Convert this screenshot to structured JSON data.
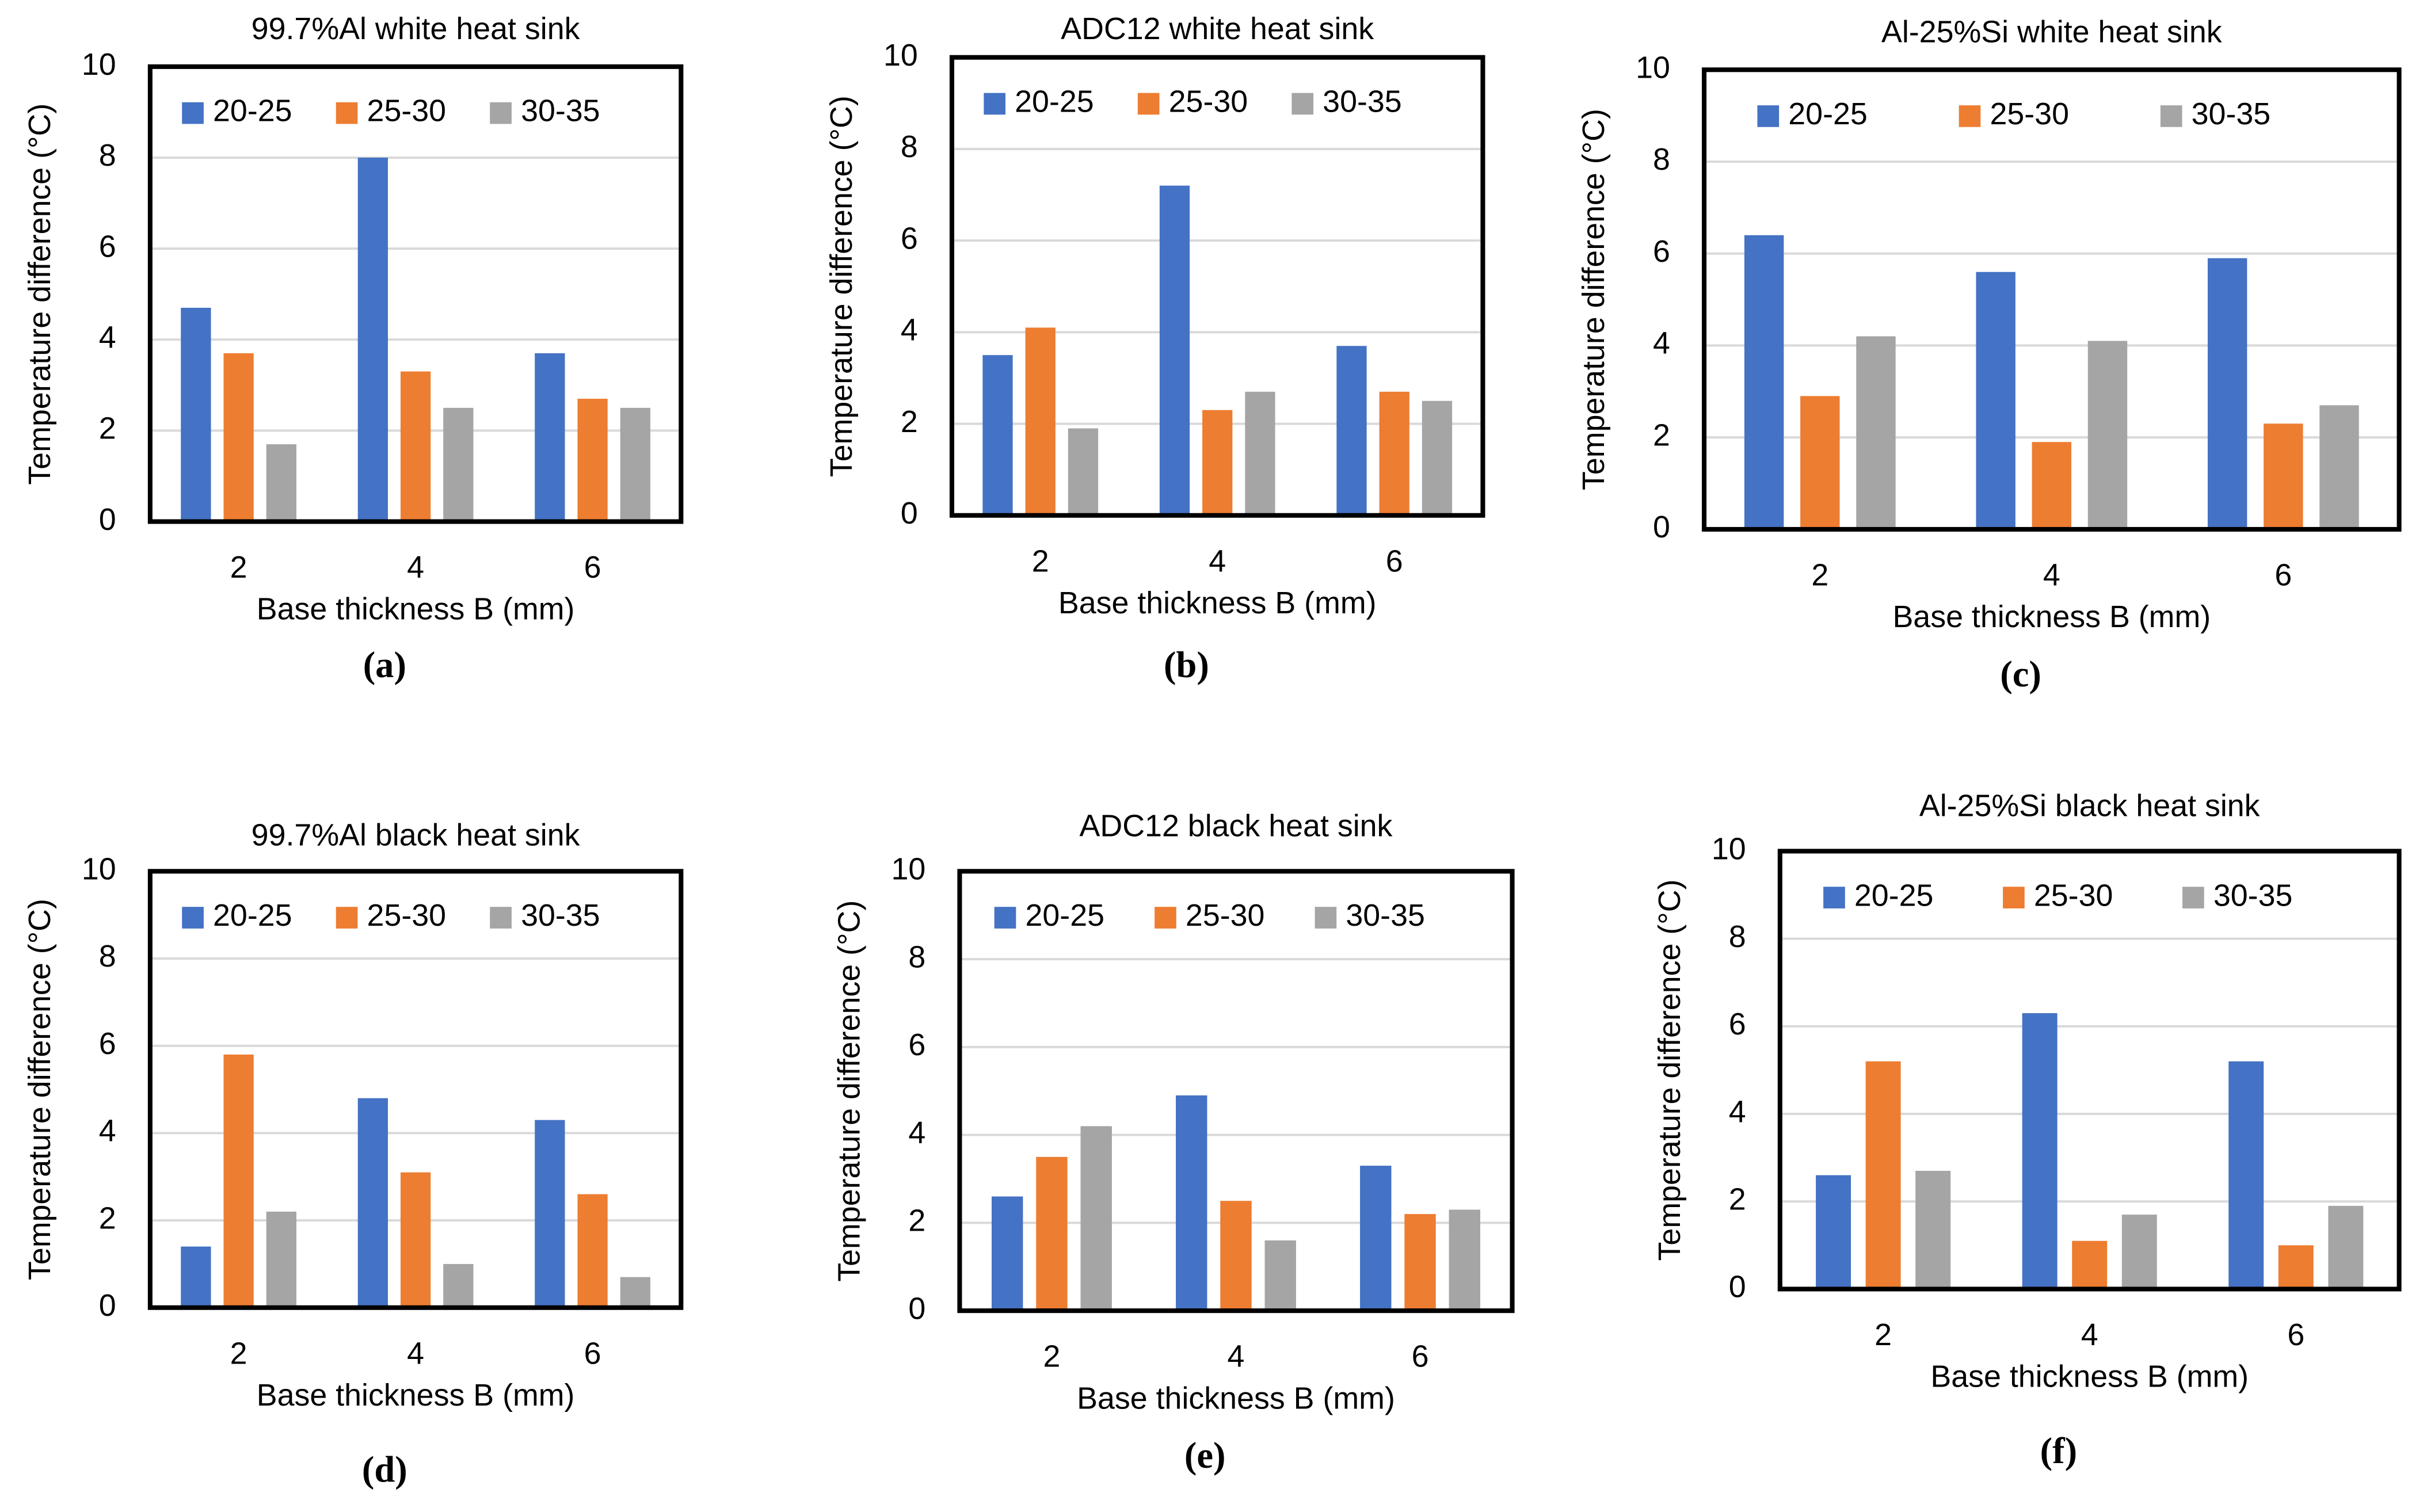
{
  "chart_data": [
    {
      "type": "bar",
      "title": "99.7%Al white heat sink",
      "caption": "(a)",
      "x_label": "Base thickness B (mm)",
      "y_label": "Temperature difference  (°C)",
      "categories": [
        "2",
        "4",
        "6"
      ],
      "series": [
        {
          "name": "20-25",
          "color": "#4472c4",
          "values": [
            4.7,
            8.0,
            3.7
          ]
        },
        {
          "name": "25-30",
          "color": "#ed7d31",
          "values": [
            3.7,
            3.3,
            2.7
          ]
        },
        {
          "name": "30-35",
          "color": "#a5a5a5",
          "values": [
            1.7,
            2.5,
            2.5
          ]
        }
      ],
      "ylim": [
        0,
        10
      ],
      "yticks": [
        0,
        2,
        4,
        6,
        8,
        10
      ],
      "grid": true
    },
    {
      "type": "bar",
      "title": "ADC12 white heat sink",
      "caption": "(b)",
      "x_label": "Base thickness B (mm)",
      "y_label": "Temperature difference (°C)",
      "categories": [
        "2",
        "4",
        "6"
      ],
      "series": [
        {
          "name": "20-25",
          "color": "#4472c4",
          "values": [
            3.5,
            7.2,
            3.7
          ]
        },
        {
          "name": "25-30",
          "color": "#ed7d31",
          "values": [
            4.1,
            2.3,
            2.7
          ]
        },
        {
          "name": "30-35",
          "color": "#a5a5a5",
          "values": [
            1.9,
            2.7,
            2.5
          ]
        }
      ],
      "ylim": [
        0,
        10
      ],
      "yticks": [
        0,
        2,
        4,
        6,
        8,
        10
      ],
      "grid": true
    },
    {
      "type": "bar",
      "title": "Al-25%Si white heat sink",
      "caption": "(c)",
      "x_label": "Base thickness B (mm)",
      "y_label": "Temperature difference  (°C)",
      "categories": [
        "2",
        "4",
        "6"
      ],
      "series": [
        {
          "name": "20-25",
          "color": "#4472c4",
          "values": [
            6.4,
            5.6,
            5.9
          ]
        },
        {
          "name": "25-30",
          "color": "#ed7d31",
          "values": [
            2.9,
            1.9,
            2.3
          ]
        },
        {
          "name": "30-35",
          "color": "#a5a5a5",
          "values": [
            4.2,
            4.1,
            2.7
          ]
        }
      ],
      "ylim": [
        0,
        10
      ],
      "yticks": [
        0,
        2,
        4,
        6,
        8,
        10
      ],
      "grid": true
    },
    {
      "type": "bar",
      "title": "99.7%Al  black heat sink",
      "caption": "(d)",
      "x_label": "Base thickness B (mm)",
      "y_label": "Temperature difference (°C)",
      "categories": [
        "2",
        "4",
        "6"
      ],
      "series": [
        {
          "name": "20-25",
          "color": "#4472c4",
          "values": [
            1.4,
            4.8,
            4.3
          ]
        },
        {
          "name": "25-30",
          "color": "#ed7d31",
          "values": [
            5.8,
            3.1,
            2.6
          ]
        },
        {
          "name": "30-35",
          "color": "#a5a5a5",
          "values": [
            2.2,
            1.0,
            0.7
          ]
        }
      ],
      "ylim": [
        0,
        10
      ],
      "yticks": [
        0,
        2,
        4,
        6,
        8,
        10
      ],
      "grid": true
    },
    {
      "type": "bar",
      "title": "ADC12 black heat sink",
      "caption": "(e)",
      "x_label": "Base thickness B (mm)",
      "y_label": "Temperature difference (°C)",
      "categories": [
        "2",
        "4",
        "6"
      ],
      "series": [
        {
          "name": "20-25",
          "color": "#4472c4",
          "values": [
            2.6,
            4.9,
            3.3
          ]
        },
        {
          "name": "25-30",
          "color": "#ed7d31",
          "values": [
            3.5,
            2.5,
            2.2
          ]
        },
        {
          "name": "30-35",
          "color": "#a5a5a5",
          "values": [
            4.2,
            1.6,
            2.3
          ]
        }
      ],
      "ylim": [
        0,
        10
      ],
      "yticks": [
        0,
        2,
        4,
        6,
        8,
        10
      ],
      "grid": true
    },
    {
      "type": "bar",
      "title": "Al-25%Si black heat sink",
      "caption": "(f)",
      "x_label": "Base thickness B (mm)",
      "y_label": "Temperature difference  (°C)",
      "categories": [
        "2",
        "4",
        "6"
      ],
      "series": [
        {
          "name": "20-25",
          "color": "#4472c4",
          "values": [
            2.6,
            6.3,
            5.2
          ]
        },
        {
          "name": "25-30",
          "color": "#ed7d31",
          "values": [
            5.2,
            1.1,
            1.0
          ]
        },
        {
          "name": "30-35",
          "color": "#a5a5a5",
          "values": [
            2.7,
            1.7,
            1.9
          ]
        }
      ],
      "ylim": [
        0,
        10
      ],
      "yticks": [
        0,
        2,
        4,
        6,
        8,
        10
      ],
      "grid": true
    }
  ]
}
